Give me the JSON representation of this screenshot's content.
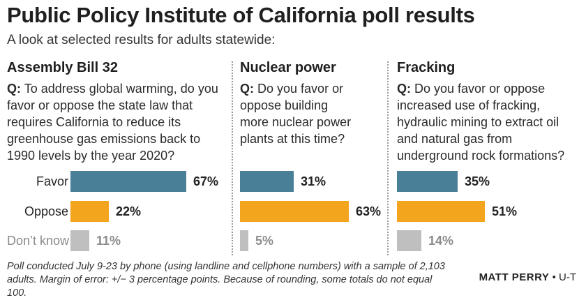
{
  "title": "Public Policy Institute of California poll results",
  "subtitle": "A look at selected results for adults statewide:",
  "colors": {
    "favor": "#4a7f98",
    "oppose": "#f3a51d",
    "dont_know": "#bfbfbf"
  },
  "row_labels": [
    "Favor",
    "Oppose",
    "Don’t know"
  ],
  "chart_data": [
    {
      "type": "bar",
      "title": "Assembly Bill 32",
      "question_prefix": "Q:",
      "question": "To address global warming, do you favor or oppose the state law that requires California to reduce its greenhouse gas emissions back to 1990 levels by the year 2020?",
      "categories": [
        "Favor",
        "Oppose",
        "Don’t know"
      ],
      "values": [
        67,
        22,
        11
      ],
      "value_labels": [
        "67%",
        "22%",
        "11%"
      ]
    },
    {
      "type": "bar",
      "title": "Nuclear power",
      "question_prefix": "Q:",
      "question": "Do you favor or oppose building more nuclear power plants at this time?",
      "categories": [
        "Favor",
        "Oppose",
        "Don’t know"
      ],
      "values": [
        31,
        63,
        5
      ],
      "value_labels": [
        "31%",
        "63%",
        "5%"
      ]
    },
    {
      "type": "bar",
      "title": "Fracking",
      "question_prefix": "Q:",
      "question": "Do you favor or oppose increased use of fracking, hydraulic mining to extract oil and natural gas from underground rock formations?",
      "categories": [
        "Favor",
        "Oppose",
        "Don’t know"
      ],
      "values": [
        35,
        51,
        14
      ],
      "value_labels": [
        "35%",
        "51%",
        "14%"
      ]
    }
  ],
  "footnote": "Poll conducted July 9-23 by phone (using landline and cellphone numbers) with a sample of 2,103 adults. Margin of error: +/− 3 percentage points. Because of rounding, some totals do not equal 100.",
  "credit": {
    "name": "MATT PERRY",
    "sep": " • ",
    "org": "U-T"
  }
}
